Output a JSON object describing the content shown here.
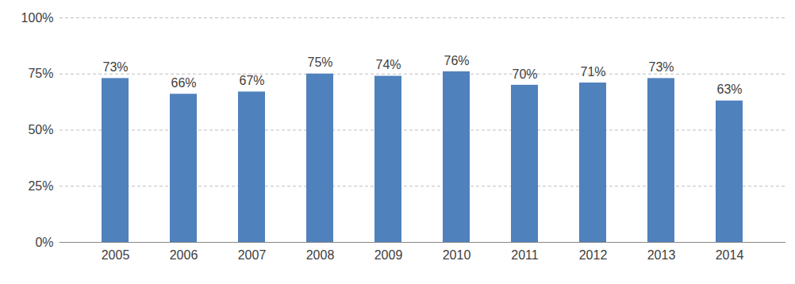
{
  "chart_data": {
    "type": "bar",
    "categories": [
      "2005",
      "2006",
      "2007",
      "2008",
      "2009",
      "2010",
      "2011",
      "2012",
      "2013",
      "2014"
    ],
    "values": [
      73,
      66,
      67,
      75,
      74,
      76,
      70,
      71,
      73,
      63
    ],
    "value_labels": [
      "73%",
      "66%",
      "67%",
      "75%",
      "74%",
      "76%",
      "70%",
      "71%",
      "73%",
      "63%"
    ],
    "color": "#4f81bd",
    "ylim": [
      0,
      100
    ],
    "yticks": [
      {
        "value": 0,
        "label": "0%"
      },
      {
        "value": 25,
        "label": "25%"
      },
      {
        "value": 50,
        "label": "50%"
      },
      {
        "value": 75,
        "label": "75%"
      },
      {
        "value": 100,
        "label": "100%"
      }
    ],
    "grid": true,
    "data_labels": true
  }
}
